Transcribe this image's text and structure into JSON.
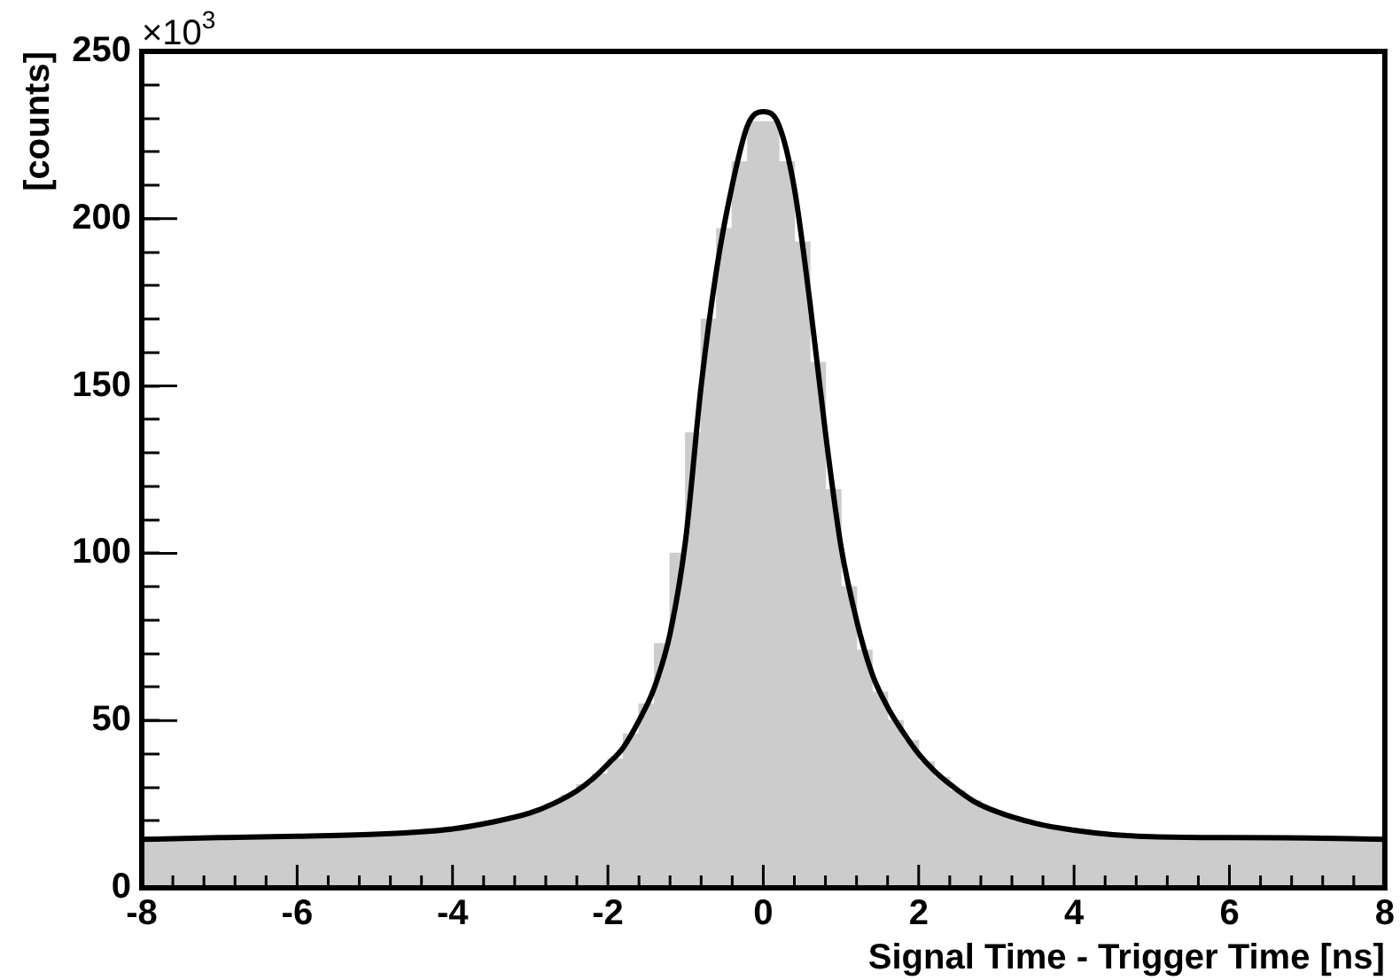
{
  "chart_data": {
    "type": "histogram",
    "xlabel": "Signal Time - Trigger Time [ns]",
    "ylabel": "[counts]",
    "annotations": [
      "×10$^{3}$"
    ],
    "bins": [
      -8,
      -7.8,
      -7.6,
      -7.4,
      -7.2,
      -7,
      -6.8,
      -6.6,
      -6.4,
      -6.2,
      -6,
      -5.8,
      -5.6,
      -5.4,
      -5.2,
      -5,
      -4.8,
      -4.6,
      -4.4,
      -4.2,
      -4,
      -3.8,
      -3.6,
      -3.4,
      -3.2,
      -3,
      -2.8,
      -2.6,
      -2.4,
      -2.2,
      -2,
      -1.8,
      -1.6,
      -1.4,
      -1.2,
      -1,
      -0.8,
      -0.6,
      -0.4,
      -0.2,
      0,
      0.2,
      0.4,
      0.6,
      0.8,
      1,
      1.2,
      1.4,
      1.6,
      1.8,
      2,
      2.2,
      2.4,
      2.6,
      2.8,
      3,
      3.2,
      3.4,
      3.6,
      3.8,
      4,
      4.2,
      4.4,
      4.6,
      4.8,
      5,
      5.2,
      5.4,
      5.6,
      5.8,
      6,
      6.2,
      6.4,
      6.6,
      6.8,
      7,
      7.2,
      7.4,
      7.6,
      7.8,
      8
    ],
    "values": [
      14.5,
      14.6,
      14.7,
      14.8,
      14.9,
      15,
      15.1,
      15.2,
      15.3,
      15.4,
      15.5,
      15.6,
      15.7,
      15.8,
      16,
      16.2,
      16.4,
      16.7,
      17,
      17.4,
      17.9,
      18.5,
      19.3,
      20.3,
      21.6,
      23.2,
      25.2,
      27.7,
      30.8,
      34,
      38.5,
      46,
      55,
      73,
      100,
      136,
      170,
      197,
      217,
      229,
      229,
      217,
      193,
      157,
      119,
      90,
      71,
      58.5,
      50,
      44,
      37.6,
      33,
      29,
      26,
      23.5,
      21.5,
      19.8,
      18.6,
      17.6,
      16.9,
      16.3,
      15.9,
      15.6,
      15.4,
      15.2,
      15.1,
      15,
      15,
      15,
      15,
      15,
      14.9,
      14.9,
      14.8,
      14.8,
      14.7,
      14.7,
      14.6,
      14.6,
      14.5
    ],
    "color": "#cccccc",
    "series": [
      {
        "type": "line",
        "color": "#000000",
        "x": [
          -8,
          -7,
          -6,
          -5,
          -4.5,
          -4,
          -3.5,
          -3,
          -2.7,
          -2.4,
          -2.2,
          -2,
          -1.8,
          -1.6,
          -1.4,
          -1.2,
          -1,
          -0.8,
          -0.6,
          -0.4,
          -0.2,
          0,
          0.2,
          0.4,
          0.6,
          0.8,
          1,
          1.2,
          1.4,
          1.6,
          1.8,
          2,
          2.2,
          2.4,
          2.7,
          3,
          3.5,
          4,
          4.5,
          5,
          6,
          7,
          8
        ],
        "values": [
          14.5,
          15,
          15.4,
          16,
          16.6,
          17.6,
          19.6,
          22.4,
          25.2,
          29,
          32.5,
          37,
          42,
          50,
          60,
          76,
          104,
          150,
          185,
          210,
          228,
          232,
          228,
          209,
          175,
          136,
          102,
          80,
          64,
          54,
          46.5,
          40,
          35,
          31,
          26,
          22.8,
          19.3,
          17.2,
          15.9,
          15.3,
          15,
          14.9,
          14.5
        ]
      }
    ],
    "xlim": [
      -8,
      8
    ],
    "xticks": [
      -8,
      {
        "value": -7.6,
        "label": null
      },
      {
        "value": -7.2,
        "label": null
      },
      {
        "value": -6.8,
        "label": null
      },
      {
        "value": -6.4,
        "label": null
      },
      -6,
      {
        "value": -5.6,
        "label": null
      },
      {
        "value": -5.2,
        "label": null
      },
      {
        "value": -4.8,
        "label": null
      },
      {
        "value": -4.4,
        "label": null
      },
      -4,
      {
        "value": -3.6,
        "label": null
      },
      {
        "value": -3.2,
        "label": null
      },
      {
        "value": -2.8,
        "label": null
      },
      {
        "value": -2.4,
        "label": null
      },
      -2,
      {
        "value": -1.6,
        "label": null
      },
      {
        "value": -1.2,
        "label": null
      },
      {
        "value": -0.8,
        "label": null
      },
      {
        "value": -0.4,
        "label": null
      },
      0,
      {
        "value": 0.4,
        "label": null
      },
      {
        "value": 0.8,
        "label": null
      },
      {
        "value": 1.2,
        "label": null
      },
      {
        "value": 1.6,
        "label": null
      },
      2,
      {
        "value": 2.4,
        "label": null
      },
      {
        "value": 2.8,
        "label": null
      },
      {
        "value": 3.2,
        "label": null
      },
      {
        "value": 3.6,
        "label": null
      },
      4,
      {
        "value": 4.4,
        "label": null
      },
      {
        "value": 4.8,
        "label": null
      },
      {
        "value": 5.2,
        "label": null
      },
      {
        "value": 5.6,
        "label": null
      },
      6,
      {
        "value": 6.4,
        "label": null
      },
      {
        "value": 6.8,
        "label": null
      },
      {
        "value": 7.2,
        "label": null
      },
      {
        "value": 7.6,
        "label": null
      },
      8
    ],
    "ylim": [
      0,
      250
    ],
    "yticks": [
      0,
      {
        "value": 10,
        "label": null
      },
      {
        "value": 20,
        "label": null
      },
      {
        "value": 30,
        "label": null
      },
      {
        "value": 40,
        "label": null
      },
      50,
      {
        "value": 60,
        "label": null
      },
      {
        "value": 70,
        "label": null
      },
      {
        "value": 80,
        "label": null
      },
      {
        "value": 90,
        "label": null
      },
      100,
      {
        "value": 110,
        "label": null
      },
      {
        "value": 120,
        "label": null
      },
      {
        "value": 130,
        "label": null
      },
      {
        "value": 140,
        "label": null
      },
      150,
      {
        "value": 160,
        "label": null
      },
      {
        "value": 170,
        "label": null
      },
      {
        "value": 180,
        "label": null
      },
      {
        "value": 190,
        "label": null
      },
      200,
      {
        "value": 210,
        "label": null
      },
      {
        "value": 220,
        "label": null
      },
      {
        "value": 230,
        "label": null
      },
      {
        "value": 240,
        "label": null
      },
      250
    ]
  }
}
